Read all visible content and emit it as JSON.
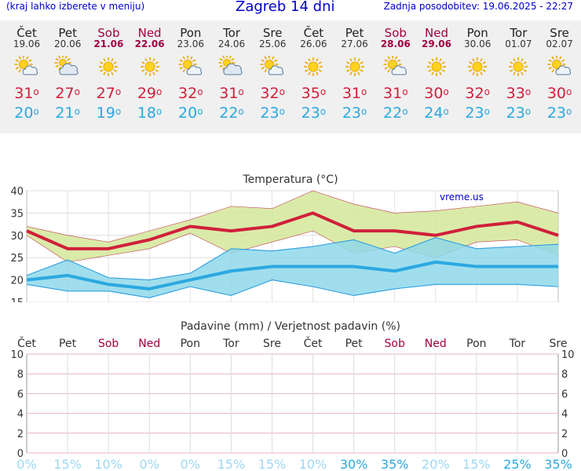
{
  "header": {
    "menu_hint": "(kraj lahko izberete v meniju)",
    "title": "Zagreb 14 dni",
    "updated": "Zadnja posodobitev: 19.06.2025 - 22:27"
  },
  "days": [
    {
      "name": "Čet",
      "date": "19.06",
      "weekend": false,
      "icon": "partly-cloudy-icon",
      "max": "31",
      "min": "20"
    },
    {
      "name": "Pet",
      "date": "20.06",
      "weekend": false,
      "icon": "cloudy-icon",
      "max": "27",
      "min": "21"
    },
    {
      "name": "Sob",
      "date": "21.06",
      "weekend": true,
      "icon": "sun-icon",
      "max": "27",
      "min": "19"
    },
    {
      "name": "Ned",
      "date": "22.06",
      "weekend": true,
      "icon": "sun-icon",
      "max": "29",
      "min": "18"
    },
    {
      "name": "Pon",
      "date": "23.06",
      "weekend": false,
      "icon": "partly-cloudy-icon",
      "max": "32",
      "min": "20"
    },
    {
      "name": "Tor",
      "date": "24.06",
      "weekend": false,
      "icon": "cloudy-icon",
      "max": "31",
      "min": "22"
    },
    {
      "name": "Sre",
      "date": "25.06",
      "weekend": false,
      "icon": "partly-cloudy-icon",
      "max": "32",
      "min": "23"
    },
    {
      "name": "Čet",
      "date": "26.06",
      "weekend": false,
      "icon": "sun-icon",
      "max": "35",
      "min": "23"
    },
    {
      "name": "Pet",
      "date": "27.06",
      "weekend": false,
      "icon": "sun-icon",
      "max": "31",
      "min": "23"
    },
    {
      "name": "Sob",
      "date": "28.06",
      "weekend": true,
      "icon": "partly-cloudy-icon",
      "max": "31",
      "min": "22"
    },
    {
      "name": "Ned",
      "date": "29.06",
      "weekend": true,
      "icon": "sun-icon",
      "max": "30",
      "min": "24"
    },
    {
      "name": "Pon",
      "date": "30.06",
      "weekend": false,
      "icon": "sun-icon",
      "max": "32",
      "min": "23"
    },
    {
      "name": "Tor",
      "date": "01.07",
      "weekend": false,
      "icon": "sun-icon",
      "max": "33",
      "min": "23"
    },
    {
      "name": "Sre",
      "date": "02.07",
      "weekend": false,
      "icon": "partly-cloudy-icon",
      "max": "30",
      "min": "23"
    }
  ],
  "degree_symbol": "o",
  "colors": {
    "max": "#d0203a",
    "min": "#2ba8e0",
    "weekend": "#a00040",
    "max_band": "#d4e89a",
    "min_band": "#8fd8ea",
    "precip_low": "#9ed8f0",
    "precip_high": "#2aa8e0"
  },
  "chart_data": [
    {
      "type": "line",
      "title": "Temperatura (°C)",
      "watermark": "vreme.us",
      "ylim": [
        15,
        40
      ],
      "yticks": [
        15,
        20,
        25,
        30,
        35,
        40
      ],
      "x": [
        "19.06",
        "20.06",
        "21.06",
        "22.06",
        "23.06",
        "24.06",
        "25.06",
        "26.06",
        "27.06",
        "28.06",
        "29.06",
        "30.06",
        "01.07",
        "02.07"
      ],
      "series": [
        {
          "role": "max",
          "values": [
            31,
            27,
            27,
            29,
            32,
            31,
            32,
            35,
            31,
            31,
            30,
            32,
            33,
            30
          ]
        },
        {
          "role": "max-high",
          "values": [
            32,
            30,
            28.5,
            31,
            33.5,
            36.5,
            36,
            40,
            37,
            35,
            35.5,
            36.5,
            37.5,
            35
          ]
        },
        {
          "role": "max-low",
          "values": [
            30,
            24,
            25.5,
            27,
            30.5,
            26,
            28.5,
            31,
            26,
            27.5,
            25,
            28.5,
            29,
            25.5
          ]
        },
        {
          "role": "min",
          "values": [
            20,
            21,
            19,
            18,
            20,
            22,
            23,
            23,
            23,
            22,
            24,
            23,
            23,
            23
          ]
        },
        {
          "role": "min-high",
          "values": [
            21,
            24.5,
            20.5,
            20,
            21.5,
            27,
            26.5,
            27.5,
            29,
            26,
            29.5,
            27,
            27.5,
            28
          ]
        },
        {
          "role": "min-low",
          "values": [
            19,
            17.5,
            17.5,
            16,
            18.5,
            16.5,
            20,
            18.5,
            16.5,
            18,
            19,
            19,
            19,
            18.5
          ]
        }
      ]
    },
    {
      "type": "bar",
      "title": "Padavine (mm) / Verjetnost padavin (%)",
      "ylim": [
        0,
        10
      ],
      "yticks": [
        0,
        2,
        4,
        6,
        8,
        10
      ],
      "categories": [
        "Čet",
        "Pet",
        "Sob",
        "Ned",
        "Pon",
        "Tor",
        "Sre",
        "Čet",
        "Pet",
        "Sob",
        "Ned",
        "Pon",
        "Tor",
        "Sre"
      ],
      "values": [
        0,
        0,
        0,
        0,
        0,
        0,
        0,
        0,
        0,
        0,
        0,
        0,
        0,
        0
      ],
      "probability": [
        "0%",
        "15%",
        "10%",
        "0%",
        "0%",
        "15%",
        "15%",
        "10%",
        "30%",
        "35%",
        "20%",
        "15%",
        "25%",
        "35%"
      ]
    }
  ]
}
